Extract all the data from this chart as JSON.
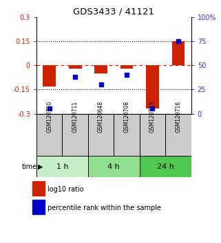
{
  "title": "GDS3433 / 41121",
  "samples": [
    "GSM120710",
    "GSM120711",
    "GSM120648",
    "GSM120708",
    "GSM120715",
    "GSM120716"
  ],
  "log10_ratio": [
    -0.13,
    -0.02,
    -0.05,
    -0.02,
    -0.27,
    0.15
  ],
  "percentile_rank": [
    5,
    38,
    30,
    40,
    5,
    75
  ],
  "groups": [
    {
      "label": "1 h",
      "indices": [
        0,
        1
      ],
      "color": "#c8f0c8"
    },
    {
      "label": "4 h",
      "indices": [
        2,
        3
      ],
      "color": "#90e090"
    },
    {
      "label": "24 h",
      "indices": [
        4,
        5
      ],
      "color": "#50c850"
    }
  ],
  "ylim_left": [
    -0.3,
    0.3
  ],
  "yticks_left": [
    -0.3,
    -0.15,
    0,
    0.15,
    0.3
  ],
  "yticks_right": [
    0,
    25,
    50,
    75,
    100
  ],
  "bar_color": "#cc2200",
  "dot_color": "#0000cc",
  "hline_color": "#cc2200",
  "grid_color": "#000000",
  "background_color": "#ffffff",
  "sample_box_color": "#cccccc",
  "bar_width": 0.5,
  "legend_red_label": "log10 ratio",
  "legend_blue_label": "percentile rank within the sample"
}
